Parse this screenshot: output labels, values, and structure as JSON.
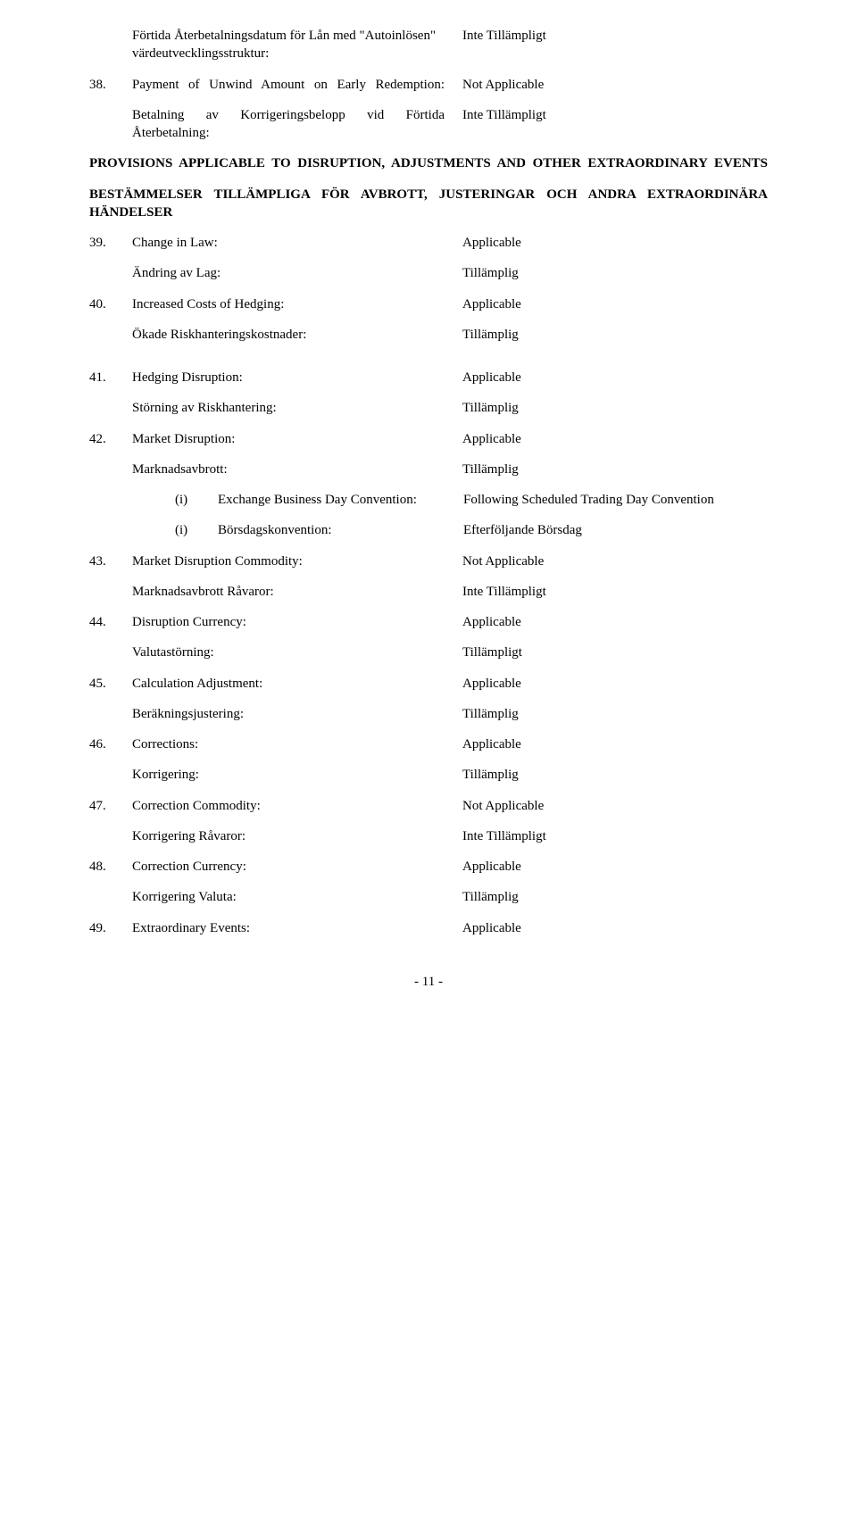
{
  "items": {
    "item37b": {
      "label_en": "Förtida Återbetalningsdatum för Lån med \"Autoinlösen\" värdeutvecklingsstruktur:",
      "value_en": "Inte Tillämpligt"
    },
    "item38": {
      "num": "38.",
      "label_en": "Payment of Unwind Amount on Early Redemption:",
      "value_en": "Not Applicable",
      "label_sv": "Betalning av Korrigeringsbelopp vid Förtida Återbetalning:",
      "value_sv": "Inte Tillämpligt"
    },
    "heading_en": "PROVISIONS APPLICABLE TO DISRUPTION, ADJUSTMENTS AND OTHER EXTRAORDINARY EVENTS",
    "heading_sv": "BESTÄMMELSER TILLÄMPLIGA FÖR AVBROTT, JUSTERINGAR OCH ANDRA EXTRAORDINÄRA HÄNDELSER",
    "item39": {
      "num": "39.",
      "label_en": "Change in Law:",
      "value_en": "Applicable",
      "label_sv": "Ändring av Lag:",
      "value_sv": "Tillämplig"
    },
    "item40": {
      "num": "40.",
      "label_en": "Increased Costs of Hedging:",
      "value_en": "Applicable",
      "label_sv": "Ökade Riskhanteringskostnader:",
      "value_sv": "Tillämplig"
    },
    "item41": {
      "num": "41.",
      "label_en": "Hedging Disruption:",
      "value_en": "Applicable",
      "label_sv": "Störning av Riskhantering:",
      "value_sv": "Tillämplig"
    },
    "item42": {
      "num": "42.",
      "label_en": "Market Disruption:",
      "value_en": "Applicable",
      "label_sv": "Marknadsavbrott:",
      "value_sv": "Tillämplig",
      "nested_i_en": {
        "ind": "(i)",
        "label": "Exchange Business Day Convention:",
        "value": "Following Scheduled Trading Day Convention"
      },
      "nested_i_sv": {
        "ind": "(i)",
        "label": "Börsdagskonvention:",
        "value": "Efterföljande Börsdag"
      }
    },
    "item43": {
      "num": "43.",
      "label_en": "Market Disruption Commodity:",
      "value_en": "Not Applicable",
      "label_sv": "Marknadsavbrott Råvaror:",
      "value_sv": "Inte Tillämpligt"
    },
    "item44": {
      "num": "44.",
      "label_en": "Disruption Currency:",
      "value_en": "Applicable",
      "label_sv": "Valutastörning:",
      "value_sv": "Tillämpligt"
    },
    "item45": {
      "num": "45.",
      "label_en": "Calculation Adjustment:",
      "value_en": "Applicable",
      "label_sv": "Beräkningsjustering:",
      "value_sv": "Tillämplig"
    },
    "item46": {
      "num": "46.",
      "label_en": "Corrections:",
      "value_en": "Applicable",
      "label_sv": "Korrigering:",
      "value_sv": "Tillämplig"
    },
    "item47": {
      "num": "47.",
      "label_en": "Correction Commodity:",
      "value_en": "Not Applicable",
      "label_sv": "Korrigering Råvaror:",
      "value_sv": "Inte Tillämpligt"
    },
    "item48": {
      "num": "48.",
      "label_en": "Correction Currency:",
      "value_en": "Applicable",
      "label_sv": "Korrigering Valuta:",
      "value_sv": "Tillämplig"
    },
    "item49": {
      "num": "49.",
      "label_en": "Extraordinary Events:",
      "value_en": "Applicable"
    }
  },
  "footer": "- 11 -"
}
